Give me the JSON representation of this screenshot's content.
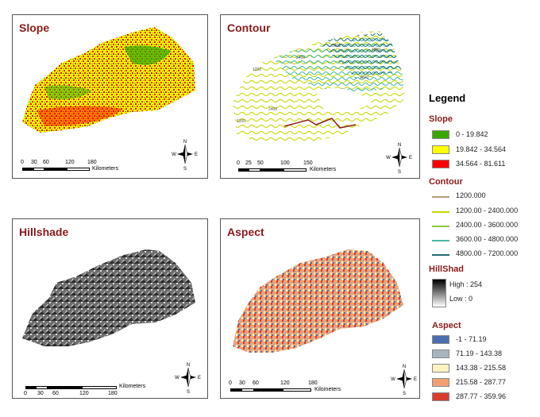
{
  "panels": {
    "slope": {
      "title": "Slope",
      "unit": "Kilometers",
      "ticks": [
        "0",
        "30",
        "60",
        "120",
        "180"
      ]
    },
    "contour": {
      "title": "Contour",
      "unit": "Kilometers",
      "ticks": [
        "0",
        "25",
        "50",
        "100",
        "150"
      ],
      "labels": [
        "1200",
        "2400",
        "3600",
        "4800",
        "3600",
        "2400",
        "1200"
      ]
    },
    "hillshade": {
      "title": "Hillshade",
      "unit": "Kilometers",
      "ticks": [
        "0",
        "30",
        "60",
        "120",
        "180"
      ]
    },
    "aspect": {
      "title": "Aspect",
      "unit": "Kilometers",
      "ticks": [
        "0",
        "30",
        "60",
        "120",
        "180"
      ]
    }
  },
  "compass": {
    "n": "N",
    "s": "S",
    "e": "E",
    "w": "W"
  },
  "legend": {
    "title": "Legend",
    "slope": {
      "heading": "Slope",
      "items": [
        {
          "label": "0 - 19.842",
          "color": "#38a800"
        },
        {
          "label": "19.842 - 34.564",
          "color": "#ffff00"
        },
        {
          "label": "34.564 - 81.611",
          "color": "#ff0000"
        }
      ]
    },
    "contour": {
      "heading": "Contour",
      "items": [
        {
          "label": "1200.000",
          "color": "#b89a7a"
        },
        {
          "label": "1200.00 - 2400.000",
          "color": "#c8d800"
        },
        {
          "label": "2400.00 - 3600.000",
          "color": "#8cc83c"
        },
        {
          "label": "3600.00 - 4800.000",
          "color": "#4cb8a8"
        },
        {
          "label": "4800.00 - 7200.000",
          "color": "#1e6e78"
        }
      ]
    },
    "hillshade": {
      "heading": "HillShad",
      "high": "High : 254",
      "low": "Low : 0"
    },
    "aspect": {
      "heading": "Aspect",
      "items": [
        {
          "label": "-1 - 71.19",
          "color": "#4a6fb0"
        },
        {
          "label": "71.19 - 143.38",
          "color": "#a8b4be"
        },
        {
          "label": "143.38 - 215.58",
          "color": "#fbf2c0"
        },
        {
          "label": "215.58 - 287.77",
          "color": "#f3a070"
        },
        {
          "label": "287.77 - 359.96",
          "color": "#d83c2c"
        }
      ]
    }
  }
}
